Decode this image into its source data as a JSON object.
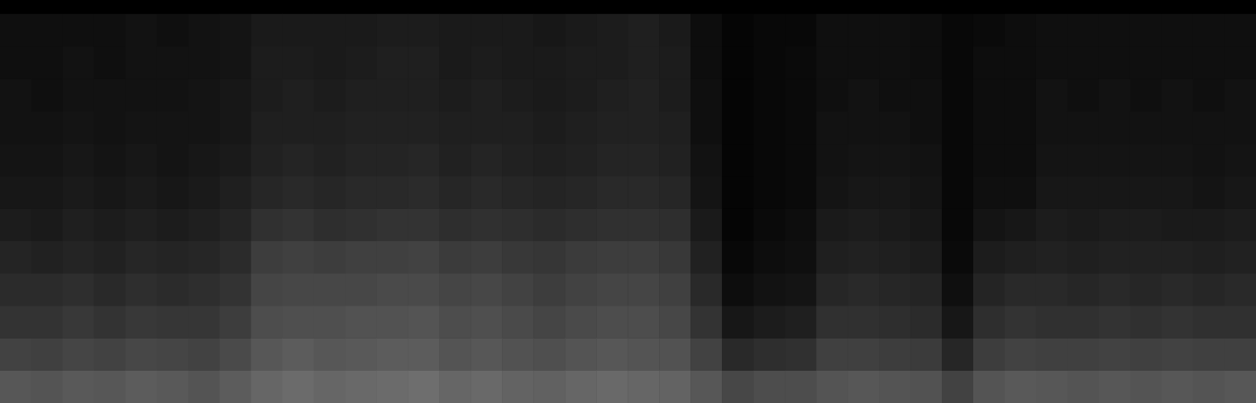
{
  "chart_data": {
    "type": "heatmap",
    "color": "#ffffff",
    "color_range": [
      0,
      100
    ],
    "tick_labels": false,
    "grid": false,
    "cells": [
      [
        34,
        26,
        20,
        17,
        14,
        11,
        9,
        8,
        7,
        7,
        6,
        6
      ],
      [
        33,
        25,
        20,
        17,
        13,
        10,
        9,
        8,
        7,
        6,
        6,
        6
      ],
      [
        35,
        27,
        22,
        18,
        14,
        12,
        10,
        9,
        8,
        7,
        7,
        6
      ],
      [
        34,
        26,
        20,
        16,
        13,
        11,
        9,
        8,
        7,
        7,
        6,
        6
      ],
      [
        36,
        28,
        22,
        18,
        15,
        12,
        10,
        9,
        8,
        7,
        7,
        7
      ],
      [
        35,
        27,
        21,
        17,
        14,
        11,
        9,
        8,
        8,
        7,
        7,
        6
      ],
      [
        33,
        26,
        21,
        18,
        15,
        12,
        10,
        9,
        8,
        8,
        7,
        7
      ],
      [
        36,
        29,
        24,
        20,
        17,
        14,
        12,
        10,
        9,
        9,
        8,
        8
      ],
      [
        40,
        34,
        30,
        27,
        24,
        19,
        15,
        13,
        12,
        11,
        11,
        10
      ],
      [
        42,
        36,
        31,
        28,
        25,
        20,
        16,
        14,
        12,
        12,
        11,
        10
      ],
      [
        40,
        34,
        31,
        28,
        24,
        18,
        15,
        13,
        12,
        11,
        10,
        10
      ],
      [
        41,
        35,
        32,
        28,
        25,
        19,
        16,
        14,
        13,
        12,
        11,
        10
      ],
      [
        42,
        36,
        32,
        29,
        25,
        20,
        16,
        14,
        13,
        12,
        12,
        11
      ],
      [
        43,
        36,
        33,
        29,
        26,
        20,
        17,
        15,
        13,
        12,
        12,
        11
      ],
      [
        40,
        33,
        30,
        27,
        23,
        18,
        15,
        13,
        12,
        11,
        10,
        10
      ],
      [
        41,
        34,
        31,
        28,
        24,
        19,
        16,
        14,
        12,
        12,
        11,
        10
      ],
      [
        39,
        32,
        29,
        26,
        22,
        18,
        15,
        13,
        12,
        11,
        10,
        10
      ],
      [
        38,
        31,
        27,
        24,
        21,
        17,
        14,
        12,
        11,
        10,
        10,
        9
      ],
      [
        40,
        33,
        29,
        26,
        23,
        18,
        15,
        13,
        12,
        11,
        11,
        10
      ],
      [
        41,
        34,
        30,
        27,
        24,
        19,
        16,
        14,
        13,
        12,
        11,
        11
      ],
      [
        40,
        33,
        30,
        27,
        24,
        19,
        16,
        14,
        13,
        13,
        12,
        12
      ],
      [
        39,
        32,
        28,
        25,
        22,
        18,
        15,
        13,
        12,
        11,
        11,
        10
      ],
      [
        34,
        26,
        20,
        16,
        13,
        10,
        8,
        7,
        6,
        6,
        5,
        5
      ],
      [
        28,
        16,
        9,
        5,
        3,
        2,
        2,
        2,
        2,
        2,
        2,
        2
      ],
      [
        30,
        18,
        11,
        7,
        5,
        4,
        3,
        3,
        3,
        3,
        3,
        3
      ],
      [
        30,
        19,
        12,
        8,
        6,
        5,
        4,
        4,
        4,
        4,
        4,
        3
      ],
      [
        33,
        25,
        19,
        15,
        12,
        10,
        8,
        7,
        7,
        6,
        6,
        6
      ],
      [
        34,
        25,
        19,
        16,
        13,
        11,
        9,
        8,
        7,
        7,
        6,
        6
      ],
      [
        33,
        24,
        18,
        15,
        12,
        10,
        9,
        8,
        7,
        6,
        6,
        6
      ],
      [
        32,
        23,
        17,
        14,
        11,
        9,
        8,
        7,
        6,
        6,
        5,
        5
      ],
      [
        26,
        15,
        9,
        6,
        4,
        3,
        3,
        3,
        3,
        3,
        3,
        3
      ],
      [
        33,
        24,
        18,
        14,
        11,
        8,
        6,
        5,
        5,
        5,
        5,
        4
      ],
      [
        35,
        26,
        20,
        16,
        12,
        9,
        6,
        5,
        5,
        5,
        5,
        5
      ],
      [
        34,
        25,
        19,
        16,
        13,
        11,
        9,
        8,
        7,
        7,
        6,
        6
      ],
      [
        33,
        25,
        19,
        15,
        12,
        10,
        9,
        8,
        7,
        6,
        6,
        6
      ],
      [
        34,
        26,
        20,
        16,
        13,
        11,
        9,
        8,
        7,
        7,
        6,
        6
      ],
      [
        33,
        25,
        19,
        15,
        13,
        11,
        9,
        8,
        7,
        6,
        6,
        6
      ],
      [
        34,
        26,
        20,
        16,
        13,
        10,
        9,
        8,
        7,
        7,
        6,
        6
      ],
      [
        33,
        25,
        19,
        15,
        12,
        10,
        8,
        7,
        7,
        6,
        6,
        6
      ],
      [
        34,
        25,
        19,
        16,
        13,
        11,
        9,
        8,
        7,
        7,
        6,
        6
      ]
    ]
  }
}
